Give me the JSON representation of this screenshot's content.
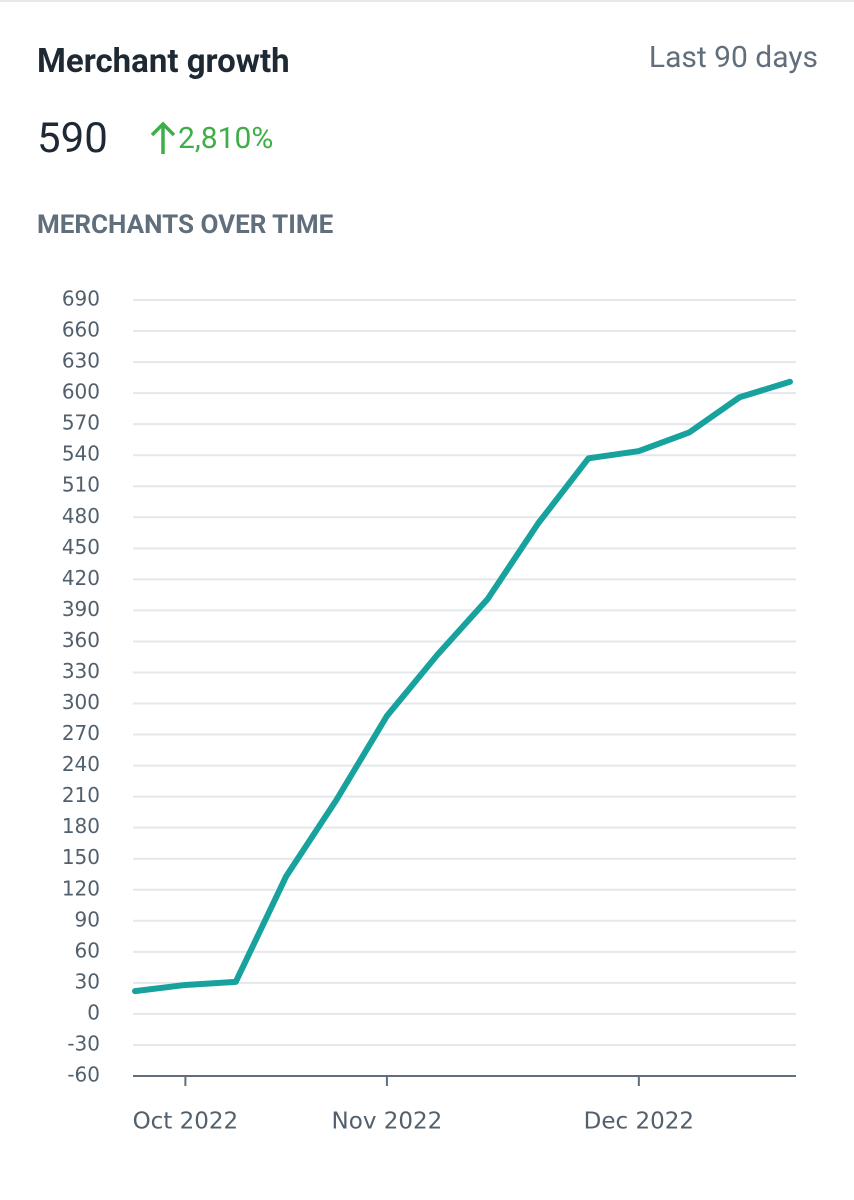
{
  "header": {
    "title": "Merchant growth",
    "period": "Last 90 days",
    "total": "590",
    "change": "2,810%"
  },
  "chart_data": {
    "type": "line",
    "title": "MERCHANTS OVER TIME",
    "categories": [
      null,
      "Oct 2022",
      null,
      null,
      null,
      "Nov 2022",
      null,
      null,
      null,
      null,
      "Dec 2022",
      null,
      null,
      null
    ],
    "series": [
      {
        "name": "Merchants",
        "color": "#17a29e",
        "values": [
          22,
          28,
          31,
          133,
          207,
          288,
          347,
          401,
          474,
          537,
          544,
          562,
          596,
          611
        ]
      }
    ],
    "ylim": [
      -60,
      690
    ],
    "yticks": [
      -60,
      -30,
      0,
      30,
      60,
      90,
      120,
      150,
      180,
      210,
      240,
      270,
      300,
      330,
      360,
      390,
      420,
      450,
      480,
      510,
      540,
      570,
      600,
      630,
      660,
      690
    ],
    "grid": true
  }
}
